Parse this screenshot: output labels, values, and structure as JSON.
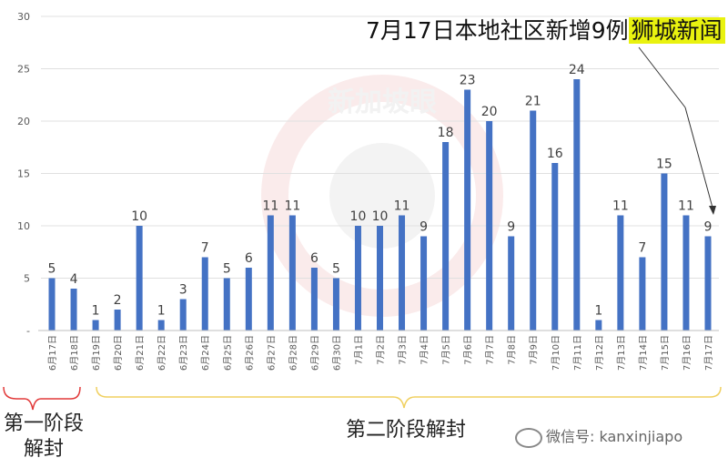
{
  "header": {
    "title_main": "7月17日本地社区新增9例",
    "title_badge": "狮城新闻"
  },
  "watermark": {
    "text": "新加坡眼"
  },
  "phases": {
    "phase1": "第一阶段解封",
    "phase2": "第二阶段解封"
  },
  "footer": {
    "wechat_label": "微信号: kanxinjiapo"
  },
  "colors": {
    "bar": "#4472c4",
    "axis": "#bfbfbf",
    "grid": "#e0e0e0",
    "bracket1": "#e23a3a",
    "bracket2": "#f0d060"
  },
  "chart_data": {
    "type": "bar",
    "title": "7月17日本地社区新增9例",
    "xlabel": "",
    "ylabel": "",
    "ylim": [
      0,
      30
    ],
    "yticks": [
      "-",
      "5",
      "10",
      "15",
      "20",
      "25",
      "30"
    ],
    "grid": true,
    "categories": [
      "6月17日",
      "6月18日",
      "6月19日",
      "6月20日",
      "6月21日",
      "6月22日",
      "6月23日",
      "6月24日",
      "6月25日",
      "6月26日",
      "6月27日",
      "6月28日",
      "6月29日",
      "6月30日",
      "7月1日",
      "7月2日",
      "7月3日",
      "7月4日",
      "7月5日",
      "7月6日",
      "7月7日",
      "7月8日",
      "7月9日",
      "7月10日",
      "7月11日",
      "7月12日",
      "7月13日",
      "7月14日",
      "7月15日",
      "7月16日",
      "7月17日"
    ],
    "values": [
      5,
      4,
      1,
      2,
      10,
      1,
      3,
      7,
      5,
      6,
      11,
      11,
      6,
      5,
      10,
      10,
      11,
      9,
      18,
      23,
      20,
      9,
      21,
      16,
      24,
      1,
      11,
      7,
      15,
      11,
      9
    ]
  }
}
